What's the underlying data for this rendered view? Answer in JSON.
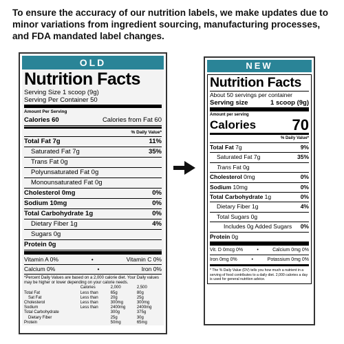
{
  "intro": "To ensure the accuracy of our nutrition labels, we make updates due to minor variations from ingredient sourcing, manufacturing processes, and FDA mandated label changes.",
  "old": {
    "header": "OLD",
    "title": "Nutrition Facts",
    "serving_size": "Serving Size 1 scoop (9g)",
    "servings": "Serving Per Container 50",
    "amount_per_serving": "Amount Per Serving",
    "calories": "Calories 60",
    "calories_fat": "Calories from Fat 60",
    "daily_value_header": "% Daily Value*",
    "rows": [
      {
        "label": "Total Fat 7g",
        "dv": "11%"
      },
      {
        "label": "Saturated Fat 7g",
        "dv": "35%"
      },
      {
        "label": "Trans Fat 0g",
        "dv": ""
      },
      {
        "label": "Polyunsaturated Fat 0g",
        "dv": ""
      },
      {
        "label": "Monounsaturated Fat 0g",
        "dv": ""
      },
      {
        "label": "Cholesterol 0mg",
        "dv": "0%"
      },
      {
        "label": "Sodium 10mg",
        "dv": "0%"
      },
      {
        "label": "Total Carbohydrate 1g",
        "dv": "0%"
      },
      {
        "label": "Dietary Fiber 1g",
        "dv": "4%"
      },
      {
        "label": "Sugars 0g",
        "dv": ""
      },
      {
        "label": "Protein 0g",
        "dv": ""
      }
    ],
    "vitamins": [
      {
        "left": "Vitamin A 0%",
        "sep": "•",
        "right": "Vitamin C 0%"
      },
      {
        "left": "Calcium 0%",
        "sep": "•",
        "right": "Iron 0%"
      }
    ],
    "footnote": "*Percent Daily Values are based on a 2,000 calorie diet. Your Daily values may be higher or lower depending on your calorie needs.",
    "table_header": [
      "Calories",
      "2,000",
      "2,500"
    ],
    "table": [
      [
        "Total Fat",
        "Less than",
        "65g",
        "80g"
      ],
      [
        "Sat Fat",
        "Less than",
        "20g",
        "25g"
      ],
      [
        "Cholesterol",
        "Less than",
        "300mg",
        "300mg"
      ],
      [
        "Sodium",
        "Less than",
        "2400mg",
        "2400mg"
      ],
      [
        "Total Carbohydrate",
        "",
        "300g",
        "375g"
      ],
      [
        "Dietary Fiber",
        "",
        "25g",
        "30g"
      ],
      [
        "Protein",
        "",
        "50mg",
        "65mg"
      ]
    ]
  },
  "new": {
    "header": "NEW",
    "title": "Nutrition Facts",
    "servings": "About 50 servings per container",
    "serving_size_label": "Serving size",
    "serving_size_value": "1 scoop (9g)",
    "amount_per_serving": "Amount per serving",
    "calories_label": "Calories",
    "calories_value": "70",
    "daily_value_header": "% Daily Value*",
    "fat_bold": "Total Fat",
    "fat_amt": " 7g",
    "fat_dv": "9%",
    "satfat": "Saturated Fat 7g",
    "satfat_dv": "35%",
    "trans_it": "Trans",
    "trans_rest": " Fat 0g",
    "chol_bold": "Cholesterol",
    "chol_amt": " 0mg",
    "chol_dv": "0%",
    "sodium_bold": "Sodium",
    "sodium_amt": " 10mg",
    "sodium_dv": "0%",
    "carb_bold": "Total Carbohydrate",
    "carb_amt": " 1g",
    "carb_dv": "0%",
    "fiber": "Dietary Fiber 1g",
    "fiber_dv": "4%",
    "sugars": "Total Sugars 0g",
    "added_sugars": "Includes 0g Added Sugars",
    "added_dv": "0%",
    "protein_bold": "Protein",
    "protein_amt": " 0g",
    "vitamins": [
      {
        "left": "Vit. D 0mcg 0%",
        "sep": "•",
        "right": "Calcium 0mg 0%"
      },
      {
        "left": "Iron 0mg 0%",
        "sep": "•",
        "right": "Potassium 0mg 0%"
      }
    ],
    "footnote": "* The % Daily Value (DV) tells you how much a nutrient in a serving of food contributes to a daily diet. 2,000 calories a day is used for general nutrition advice."
  }
}
